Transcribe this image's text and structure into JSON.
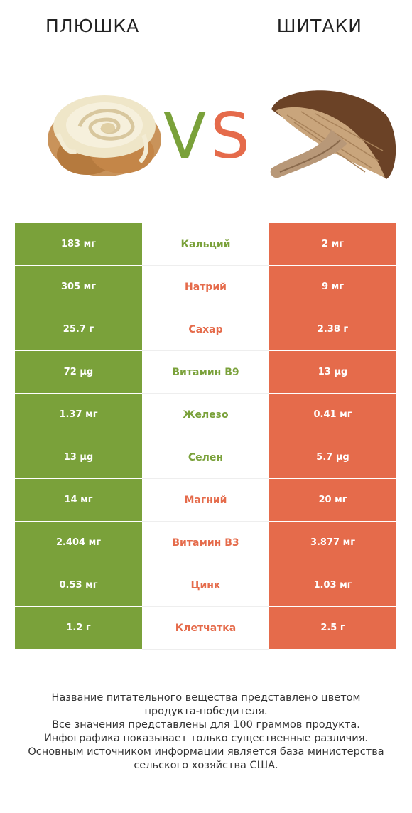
{
  "header": {
    "left_title": "ПЛЮШКА",
    "right_title": "ШИТАКИ",
    "vs_v": "V",
    "vs_s": "S"
  },
  "colors": {
    "winner_left": "#7aa13a",
    "winner_right": "#e56b4b",
    "text_dark": "#333333"
  },
  "chart_data": {
    "type": "table",
    "columns": [
      "Плюшка",
      "Шитаки"
    ],
    "rows": [
      {
        "nutrient": "Кальций",
        "left": "183 мг",
        "right": "2 мг",
        "winner": "left"
      },
      {
        "nutrient": "Натрий",
        "left": "305 мг",
        "right": "9 мг",
        "winner": "right"
      },
      {
        "nutrient": "Сахар",
        "left": "25.7 г",
        "right": "2.38 г",
        "winner": "right"
      },
      {
        "nutrient": "Витамин B9",
        "left": "72 µg",
        "right": "13 µg",
        "winner": "left"
      },
      {
        "nutrient": "Железо",
        "left": "1.37 мг",
        "right": "0.41 мг",
        "winner": "left"
      },
      {
        "nutrient": "Селен",
        "left": "13 µg",
        "right": "5.7 µg",
        "winner": "left"
      },
      {
        "nutrient": "Магний",
        "left": "14 мг",
        "right": "20 мг",
        "winner": "right"
      },
      {
        "nutrient": "Витамин B3",
        "left": "2.404 мг",
        "right": "3.877 мг",
        "winner": "right"
      },
      {
        "nutrient": "Цинк",
        "left": "0.53 мг",
        "right": "1.03 мг",
        "winner": "right"
      },
      {
        "nutrient": "Клетчатка",
        "left": "1.2 г",
        "right": "2.5 г",
        "winner": "right"
      }
    ]
  },
  "footnote": {
    "lines": [
      "Название питательного вещества представлено цветом",
      "продукта-победителя.",
      "Все значения представлены для 100 граммов продукта.",
      "Инфографика показывает только существенные различия.",
      "Основным источником информации является база министерства",
      "сельского хозяйства США."
    ]
  }
}
